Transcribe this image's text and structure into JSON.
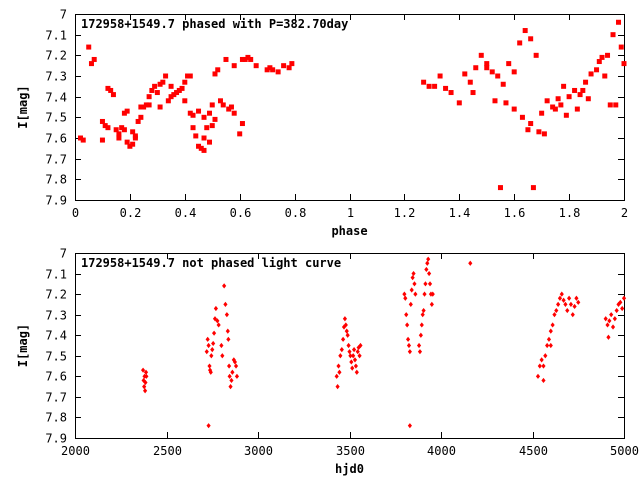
{
  "chart_data": [
    {
      "type": "scatter",
      "title": "172958+1549.7 phased with P=382.70day",
      "xlabel": "phase",
      "ylabel": "I[mag]",
      "xlim": [
        0,
        2
      ],
      "ylim": [
        7.9,
        7.0
      ],
      "y_inverted": true,
      "x_ticks": [
        "0",
        "0.2",
        "0.4",
        "0.6",
        "0.8",
        "1",
        "1.2",
        "1.4",
        "1.6",
        "1.8",
        "2"
      ],
      "y_ticks": [
        "7",
        "7.1",
        "7.2",
        "7.3",
        "7.4",
        "7.5",
        "7.6",
        "7.7",
        "7.8",
        "7.9"
      ],
      "grid": false,
      "marker_color": "#ff0000",
      "marker": "filled-square",
      "x": [
        0.02,
        0.03,
        0.05,
        0.06,
        0.07,
        0.1,
        0.11,
        0.12,
        0.13,
        0.14,
        0.15,
        0.16,
        0.17,
        0.18,
        0.19,
        0.2,
        0.21,
        0.22,
        0.23,
        0.24,
        0.25,
        0.26,
        0.27,
        0.28,
        0.29,
        0.3,
        0.31,
        0.32,
        0.33,
        0.34,
        0.35,
        0.36,
        0.37,
        0.38,
        0.39,
        0.4,
        0.41,
        0.42,
        0.43,
        0.44,
        0.45,
        0.46,
        0.47,
        0.48,
        0.49,
        0.5,
        0.51,
        0.52,
        0.53,
        0.54,
        0.56,
        0.57,
        0.58,
        0.6,
        0.61,
        0.62,
        0.63,
        0.64,
        0.66,
        0.7,
        0.71,
        0.72,
        0.74,
        0.76,
        0.78,
        0.79,
        0.1,
        0.12,
        0.16,
        0.19,
        0.21,
        0.24,
        0.27,
        0.31,
        0.35,
        0.4,
        0.43,
        0.45,
        0.47,
        0.49,
        0.51,
        0.55,
        0.58,
        0.61,
        0.47,
        0.5,
        0.42,
        0.18,
        0.22,
        1.27,
        1.29,
        1.31,
        1.33,
        1.35,
        1.37,
        1.4,
        1.42,
        1.44,
        1.46,
        1.48,
        1.5,
        1.52,
        1.54,
        1.56,
        1.58,
        1.6,
        1.62,
        1.64,
        1.66,
        1.68,
        1.7,
        1.72,
        1.74,
        1.76,
        1.78,
        1.8,
        1.82,
        1.84,
        1.86,
        1.88,
        1.9,
        1.92,
        1.94,
        1.96,
        1.98,
        2.0,
        1.55,
        1.67,
        1.45,
        1.5,
        1.57,
        1.6,
        1.63,
        1.66,
        1.69,
        1.75,
        1.79,
        1.83,
        1.87,
        1.91,
        1.95,
        1.97,
        1.99,
        1.53,
        1.65,
        1.71,
        1.77,
        1.85,
        1.93
      ],
      "y": [
        7.6,
        7.61,
        7.16,
        7.24,
        7.22,
        7.52,
        7.54,
        7.36,
        7.37,
        7.39,
        7.56,
        7.6,
        7.55,
        7.56,
        7.62,
        7.64,
        7.63,
        7.59,
        7.52,
        7.5,
        7.45,
        7.44,
        7.44,
        7.37,
        7.35,
        7.38,
        7.34,
        7.33,
        7.3,
        7.42,
        7.4,
        7.39,
        7.38,
        7.37,
        7.36,
        7.33,
        7.3,
        7.48,
        7.55,
        7.59,
        7.64,
        7.65,
        7.66,
        7.55,
        7.48,
        7.44,
        7.29,
        7.27,
        7.42,
        7.44,
        7.46,
        7.45,
        7.48,
        7.58,
        7.53,
        7.22,
        7.21,
        7.22,
        7.25,
        7.27,
        7.26,
        7.27,
        7.28,
        7.25,
        7.26,
        7.24,
        7.61,
        7.55,
        7.58,
        7.47,
        7.57,
        7.45,
        7.4,
        7.45,
        7.35,
        7.42,
        7.49,
        7.47,
        7.6,
        7.62,
        7.51,
        7.22,
        7.25,
        7.22,
        7.5,
        7.54,
        7.3,
        7.48,
        7.6,
        7.33,
        7.35,
        7.35,
        7.3,
        7.36,
        7.38,
        7.43,
        7.29,
        7.33,
        7.26,
        7.2,
        7.26,
        7.28,
        7.3,
        7.34,
        7.24,
        7.28,
        7.14,
        7.08,
        7.12,
        7.2,
        7.48,
        7.42,
        7.45,
        7.41,
        7.35,
        7.4,
        7.37,
        7.39,
        7.33,
        7.29,
        7.27,
        7.21,
        7.2,
        7.1,
        7.04,
        7.24,
        7.84,
        7.84,
        7.38,
        7.24,
        7.43,
        7.46,
        7.5,
        7.53,
        7.57,
        7.46,
        7.49,
        7.46,
        7.41,
        7.23,
        7.44,
        7.44,
        7.16,
        7.42,
        7.56,
        7.58,
        7.44,
        7.37,
        7.3
      ]
    },
    {
      "type": "scatter",
      "title": "172958+1549.7 not phased light curve",
      "xlabel": "hjd0",
      "ylabel": "I[mag]",
      "xlim": [
        2000,
        5000
      ],
      "ylim": [
        7.9,
        7.0
      ],
      "y_inverted": true,
      "x_ticks": [
        "2000",
        "2500",
        "3000",
        "3500",
        "4000",
        "4500",
        "5000"
      ],
      "y_ticks": [
        "7",
        "7.1",
        "7.2",
        "7.3",
        "7.4",
        "7.5",
        "7.6",
        "7.7",
        "7.8",
        "7.9"
      ],
      "grid": false,
      "marker_color": "#ff0000",
      "marker": "filled-diamond",
      "x": [
        2372,
        2375,
        2378,
        2380,
        2383,
        2385,
        2388,
        2390,
        2720,
        2725,
        2730,
        2735,
        2738,
        2742,
        2745,
        2750,
        2755,
        2760,
        2765,
        2770,
        2778,
        2785,
        2800,
        2805,
        2815,
        2822,
        2830,
        2835,
        2838,
        2842,
        2845,
        2850,
        2855,
        2860,
        2868,
        2874,
        2880,
        2885,
        2730,
        3430,
        3435,
        3440,
        3445,
        3450,
        3458,
        3465,
        3470,
        3475,
        3480,
        3485,
        3490,
        3495,
        3500,
        3505,
        3510,
        3515,
        3520,
        3525,
        3530,
        3535,
        3540,
        3545,
        3550,
        3555,
        3560,
        3800,
        3805,
        3810,
        3815,
        3820,
        3825,
        3830,
        3835,
        3840,
        3845,
        3850,
        3855,
        3860,
        3880,
        3885,
        3890,
        3895,
        3900,
        3905,
        3910,
        3915,
        3920,
        3925,
        3930,
        3935,
        3940,
        3945,
        3950,
        3955,
        3830,
        4160,
        4530,
        4540,
        4550,
        4560,
        4570,
        4580,
        4590,
        4600,
        4610,
        4620,
        4630,
        4640,
        4650,
        4660,
        4670,
        4680,
        4690,
        4700,
        4710,
        4720,
        4730,
        4740,
        4750,
        4560,
        4600,
        4900,
        4910,
        4920,
        4930,
        4940,
        4950,
        4960,
        4970,
        4980,
        4990,
        5000,
        4915
      ],
      "y": [
        7.57,
        7.62,
        7.65,
        7.6,
        7.67,
        7.63,
        7.58,
        7.6,
        7.48,
        7.42,
        7.45,
        7.55,
        7.57,
        7.58,
        7.5,
        7.47,
        7.44,
        7.39,
        7.32,
        7.27,
        7.33,
        7.35,
        7.45,
        7.5,
        7.16,
        7.25,
        7.3,
        7.38,
        7.42,
        7.55,
        7.6,
        7.65,
        7.62,
        7.58,
        7.52,
        7.53,
        7.55,
        7.6,
        7.84,
        7.6,
        7.65,
        7.55,
        7.58,
        7.5,
        7.47,
        7.42,
        7.36,
        7.32,
        7.35,
        7.38,
        7.4,
        7.45,
        7.48,
        7.5,
        7.53,
        7.56,
        7.5,
        7.47,
        7.52,
        7.55,
        7.58,
        7.48,
        7.46,
        7.5,
        7.45,
        7.2,
        7.22,
        7.3,
        7.35,
        7.42,
        7.45,
        7.48,
        7.25,
        7.18,
        7.12,
        7.1,
        7.15,
        7.2,
        7.45,
        7.48,
        7.4,
        7.35,
        7.3,
        7.28,
        7.2,
        7.15,
        7.08,
        7.05,
        7.03,
        7.1,
        7.15,
        7.2,
        7.25,
        7.2,
        7.84,
        7.05,
        7.6,
        7.55,
        7.52,
        7.55,
        7.5,
        7.45,
        7.42,
        7.38,
        7.35,
        7.3,
        7.28,
        7.25,
        7.22,
        7.2,
        7.23,
        7.25,
        7.28,
        7.22,
        7.25,
        7.3,
        7.26,
        7.22,
        7.24,
        7.62,
        7.45,
        7.32,
        7.35,
        7.33,
        7.3,
        7.36,
        7.32,
        7.28,
        7.25,
        7.24,
        7.27,
        7.22,
        7.41
      ]
    }
  ]
}
